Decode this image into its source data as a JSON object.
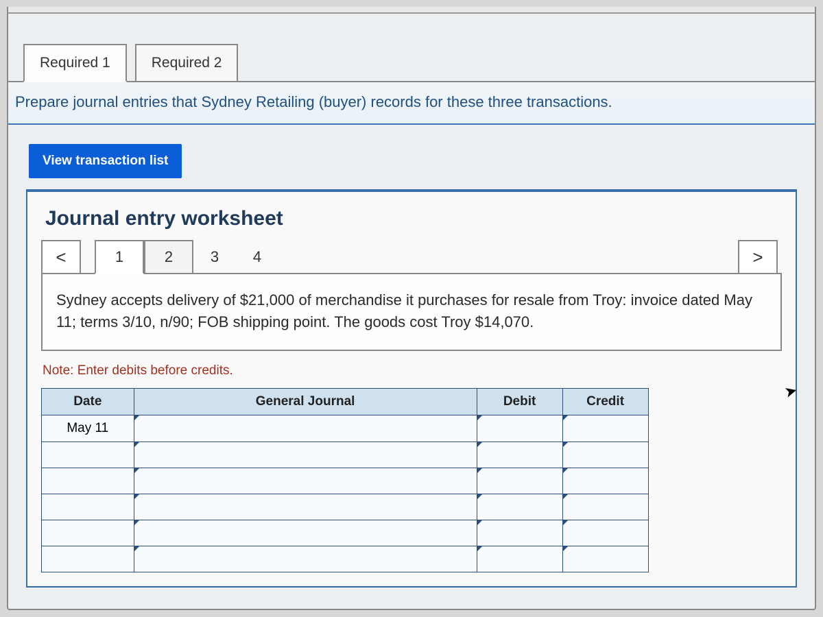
{
  "tabs": {
    "req1": "Required 1",
    "req2": "Required 2",
    "active": "req1"
  },
  "instruction": "Prepare journal entries that Sydney Retailing (buyer) records for these three transactions.",
  "view_transaction_btn": "View transaction list",
  "worksheet": {
    "title": "Journal entry worksheet",
    "nav_prev": "<",
    "nav_next": ">",
    "steps": [
      "1",
      "2",
      "3",
      "4"
    ],
    "active_step": 0,
    "description": "Sydney accepts delivery of $21,000 of merchandise it purchases for resale from Troy: invoice dated May 11; terms 3/10, n/90; FOB shipping point. The goods cost Troy $14,070.",
    "note": "Note: Enter debits before credits.",
    "table": {
      "headers": {
        "date": "Date",
        "gj": "General Journal",
        "debit": "Debit",
        "credit": "Credit"
      },
      "rows": [
        {
          "date": "May 11",
          "gj": "",
          "debit": "",
          "credit": ""
        },
        {
          "date": "",
          "gj": "",
          "debit": "",
          "credit": ""
        },
        {
          "date": "",
          "gj": "",
          "debit": "",
          "credit": ""
        },
        {
          "date": "",
          "gj": "",
          "debit": "",
          "credit": ""
        },
        {
          "date": "",
          "gj": "",
          "debit": "",
          "credit": ""
        },
        {
          "date": "",
          "gj": "",
          "debit": "",
          "credit": ""
        }
      ]
    }
  },
  "colors": {
    "instruction_text": "#205080",
    "view_btn_bg": "#0b5ed7",
    "panel_border": "#3b6fa8",
    "table_border": "#2b4f7a",
    "table_header_bg": "#cfe0ef",
    "note_text": "#a03020"
  }
}
